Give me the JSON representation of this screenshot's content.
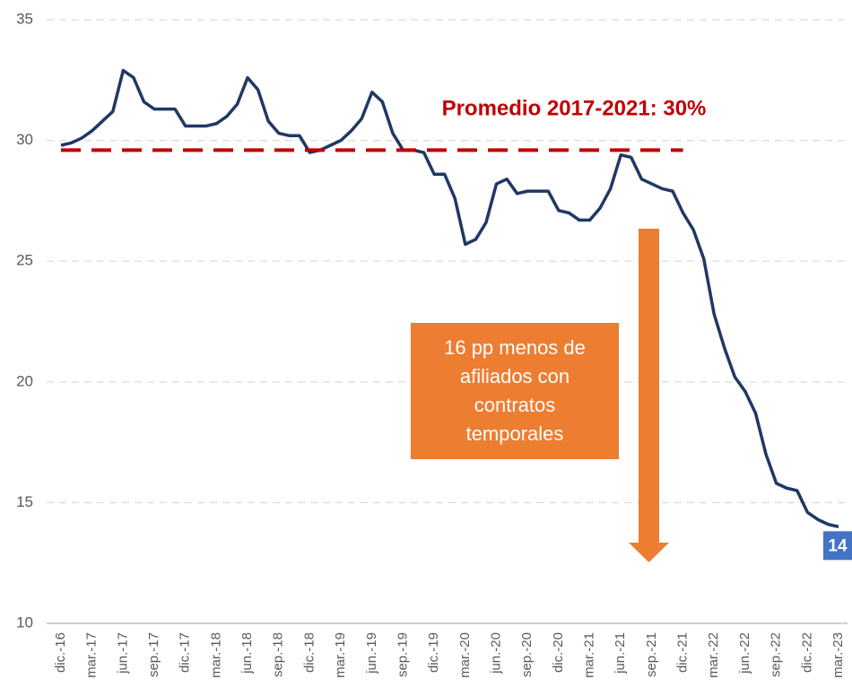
{
  "chart_data": {
    "type": "line",
    "categories": [
      "dic.-16",
      null,
      null,
      "mar.-17",
      null,
      null,
      "jun.-17",
      null,
      null,
      "sep.-17",
      null,
      null,
      "dic.-17",
      null,
      null,
      "mar.-18",
      null,
      null,
      "jun.-18",
      null,
      null,
      "sep.-18",
      null,
      null,
      "dic.-18",
      null,
      null,
      "mar.-19",
      null,
      null,
      "jun.-19",
      null,
      null,
      "sep.-19",
      null,
      null,
      "dic.-19",
      null,
      null,
      "mar.-20",
      null,
      null,
      "jun.-20",
      null,
      null,
      "sep.-20",
      null,
      null,
      "dic.-20",
      null,
      null,
      "mar.-21",
      null,
      null,
      "jun.-21",
      null,
      null,
      "sep.-21",
      null,
      null,
      "dic.-21",
      null,
      null,
      "mar.-22",
      null,
      null,
      "jun.-22",
      null,
      null,
      "sep.-22",
      null,
      null,
      "dic.-22",
      null,
      null,
      "mar.-23"
    ],
    "series": [
      {
        "color": "#203864",
        "values": [
          29.8,
          29.9,
          30.1,
          30.4,
          30.8,
          31.2,
          32.9,
          32.6,
          31.6,
          31.3,
          31.3,
          31.3,
          30.6,
          30.6,
          30.6,
          30.7,
          31.0,
          31.5,
          32.6,
          32.1,
          30.8,
          30.3,
          30.2,
          30.2,
          29.5,
          29.6,
          29.8,
          30.0,
          30.4,
          30.9,
          32.0,
          31.6,
          30.3,
          29.6,
          29.6,
          29.5,
          28.6,
          28.6,
          27.6,
          25.7,
          25.9,
          26.6,
          28.2,
          28.4,
          27.8,
          27.9,
          27.9,
          27.9,
          27.1,
          27.0,
          26.7,
          26.7,
          27.2,
          28.0,
          29.4,
          29.3,
          28.4,
          28.2,
          28.0,
          27.9,
          27.0,
          26.3,
          25.1,
          22.8,
          21.4,
          20.2,
          19.6,
          18.7,
          17.0,
          15.8,
          15.6,
          15.5,
          14.6,
          14.3,
          14.1,
          14.0
        ]
      },
      {
        "name": "Promedio 2017-2021: 30%",
        "color": "#c00000",
        "dashed": true,
        "values": [
          29.6,
          29.6,
          29.6,
          29.6,
          29.6,
          29.6,
          29.6,
          29.6,
          29.6,
          29.6,
          29.6,
          29.6,
          29.6,
          29.6,
          29.6,
          29.6,
          29.6,
          29.6,
          29.6,
          29.6,
          29.6,
          29.6,
          29.6,
          29.6,
          29.6,
          29.6,
          29.6,
          29.6,
          29.6,
          29.6,
          29.6,
          29.6,
          29.6,
          29.6,
          29.6,
          29.6,
          29.6,
          29.6,
          29.6,
          29.6,
          29.6,
          29.6,
          29.6,
          29.6,
          29.6,
          29.6,
          29.6,
          29.6,
          29.6,
          29.6,
          29.6,
          29.6,
          29.6,
          29.6,
          29.6,
          29.6,
          29.6,
          29.6,
          29.6,
          29.6,
          29.6,
          null,
          null,
          null,
          null,
          null,
          null,
          null,
          null,
          null,
          null,
          null,
          null,
          null,
          null,
          null
        ]
      }
    ],
    "annotation": "16 pp menos de afiliados con contratos temporales",
    "ylim": [
      10,
      35
    ],
    "yticks": [
      10,
      15,
      20,
      25,
      30,
      35
    ],
    "grid": true
  }
}
